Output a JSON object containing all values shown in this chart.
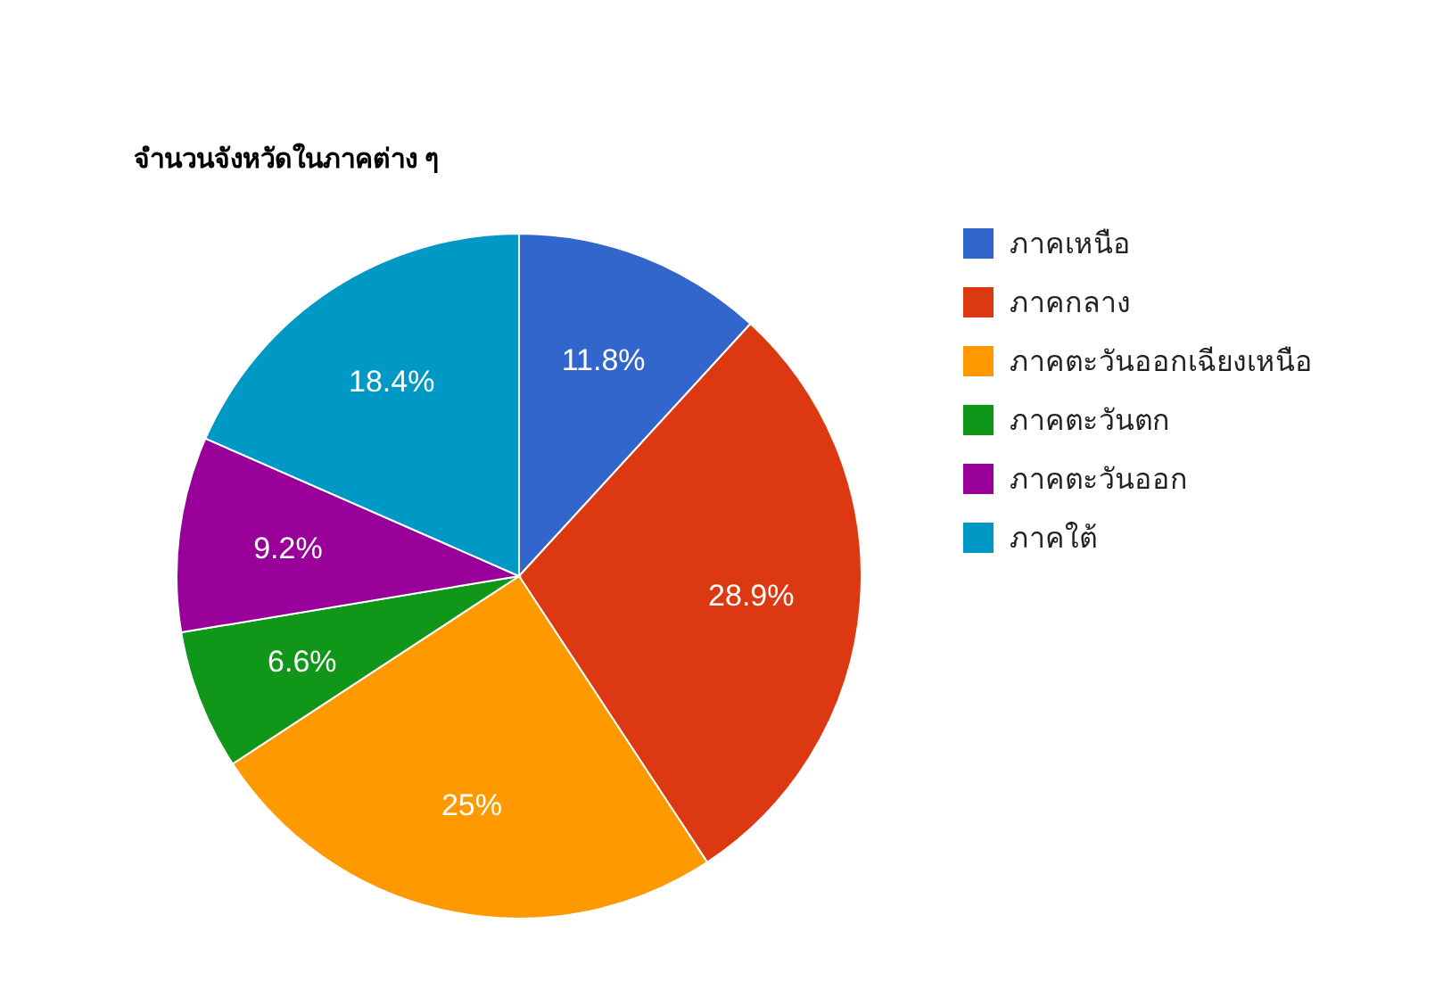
{
  "chart_data": {
    "type": "pie",
    "title": "จำนวนจังหวัดในภาคต่าง ๆ",
    "categories": [
      "ภาคเหนือ",
      "ภาคกลาง",
      "ภาคตะวันออกเฉียงเหนือ",
      "ภาคตะวันตก",
      "ภาคตะวันออก",
      "ภาคใต้"
    ],
    "values": [
      11.8,
      28.9,
      25,
      6.6,
      9.2,
      18.4
    ],
    "value_labels": [
      "11.8%",
      "28.9%",
      "25%",
      "6.6%",
      "9.2%",
      "18.4%"
    ],
    "colors": [
      "#3366cc",
      "#dc3912",
      "#ff9900",
      "#109618",
      "#990099",
      "#0099c6"
    ],
    "legend": "right"
  }
}
